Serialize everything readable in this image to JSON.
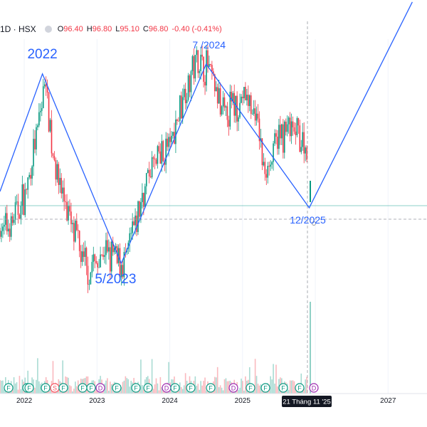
{
  "header": {
    "symbol": "1D · HSX",
    "open_label": "O",
    "open": "96.40",
    "high_label": "H",
    "high": "96.80",
    "low_label": "L",
    "low": "95.10",
    "close_label": "C",
    "close": "96.80",
    "change": "-0.40 (-0.41%)"
  },
  "colors": {
    "up": "#089981",
    "down": "#f23645",
    "wave": "#2962ff",
    "price_line": "#26a69a",
    "crosshair": "#9598a1",
    "dividend_marker": "#9c27b0",
    "financial_marker": "#089981",
    "split_marker": "#f7525f"
  },
  "chart_data": {
    "type": "candlestick",
    "x_axis": {
      "ticks": [
        "2022",
        "2023",
        "2024",
        "2025",
        "2027"
      ],
      "range": [
        "2021-09",
        "2027-05"
      ],
      "crosshair_label": "21 Tháng 11 '25"
    },
    "wave_annotations": [
      {
        "label": "2022",
        "date": "2022-04",
        "price": 100
      },
      {
        "label": "5/2023",
        "date": "2023-05",
        "price": 42
      },
      {
        "label": "7 /2024",
        "date": "2024-07",
        "price": 103
      },
      {
        "label": "12/2025",
        "date": "2025-12",
        "price": 59
      }
    ],
    "wave_path": [
      {
        "date": "2021-09",
        "price": 64
      },
      {
        "date": "2022-04",
        "price": 100
      },
      {
        "date": "2023-05",
        "price": 42
      },
      {
        "date": "2024-07",
        "price": 103
      },
      {
        "date": "2025-12",
        "price": 59
      },
      {
        "date": "2027-05",
        "price": 122
      }
    ],
    "price_trend": [
      {
        "date": "2021-09",
        "price": 52
      },
      {
        "date": "2021-11",
        "price": 57
      },
      {
        "date": "2022-01",
        "price": 64
      },
      {
        "date": "2022-03",
        "price": 86
      },
      {
        "date": "2022-04",
        "price": 100
      },
      {
        "date": "2022-05",
        "price": 78
      },
      {
        "date": "2022-07",
        "price": 62
      },
      {
        "date": "2022-09",
        "price": 50
      },
      {
        "date": "2022-11",
        "price": 40
      },
      {
        "date": "2023-02",
        "price": 45
      },
      {
        "date": "2023-05",
        "price": 42
      },
      {
        "date": "2023-07",
        "price": 55
      },
      {
        "date": "2023-09",
        "price": 70
      },
      {
        "date": "2023-11",
        "price": 75
      },
      {
        "date": "2024-01",
        "price": 80
      },
      {
        "date": "2024-03",
        "price": 96
      },
      {
        "date": "2024-05",
        "price": 104
      },
      {
        "date": "2024-07",
        "price": 102
      },
      {
        "date": "2024-09",
        "price": 88
      },
      {
        "date": "2024-11",
        "price": 90
      },
      {
        "date": "2025-01",
        "price": 92
      },
      {
        "date": "2025-03",
        "price": 86
      },
      {
        "date": "2025-04",
        "price": 70
      },
      {
        "date": "2025-06",
        "price": 78
      },
      {
        "date": "2025-08",
        "price": 84
      },
      {
        "date": "2025-10",
        "price": 80
      },
      {
        "date": "2025-11",
        "price": 77
      }
    ],
    "event_markers": [
      {
        "label": "F",
        "type": "financial"
      },
      {
        "label": "F",
        "type": "financial"
      },
      {
        "label": "F",
        "type": "financial"
      },
      {
        "label": "F",
        "type": "financial"
      },
      {
        "label": "S",
        "type": "split"
      },
      {
        "label": "F",
        "type": "financial"
      },
      {
        "label": "F",
        "type": "financial"
      },
      {
        "label": "F",
        "type": "financial"
      },
      {
        "label": "D",
        "type": "dividend"
      },
      {
        "label": "F",
        "type": "financial"
      },
      {
        "label": "F",
        "type": "financial"
      },
      {
        "label": "F",
        "type": "financial"
      },
      {
        "label": "D",
        "type": "dividend"
      },
      {
        "label": "F",
        "type": "financial"
      },
      {
        "label": "F",
        "type": "financial"
      },
      {
        "label": "F",
        "type": "financial"
      },
      {
        "label": "D",
        "type": "dividend"
      },
      {
        "label": "F",
        "type": "financial"
      },
      {
        "label": "F",
        "type": "financial"
      },
      {
        "label": "F",
        "type": "financial"
      },
      {
        "label": "F",
        "type": "financial"
      },
      {
        "label": "D",
        "type": "dividend"
      }
    ]
  }
}
